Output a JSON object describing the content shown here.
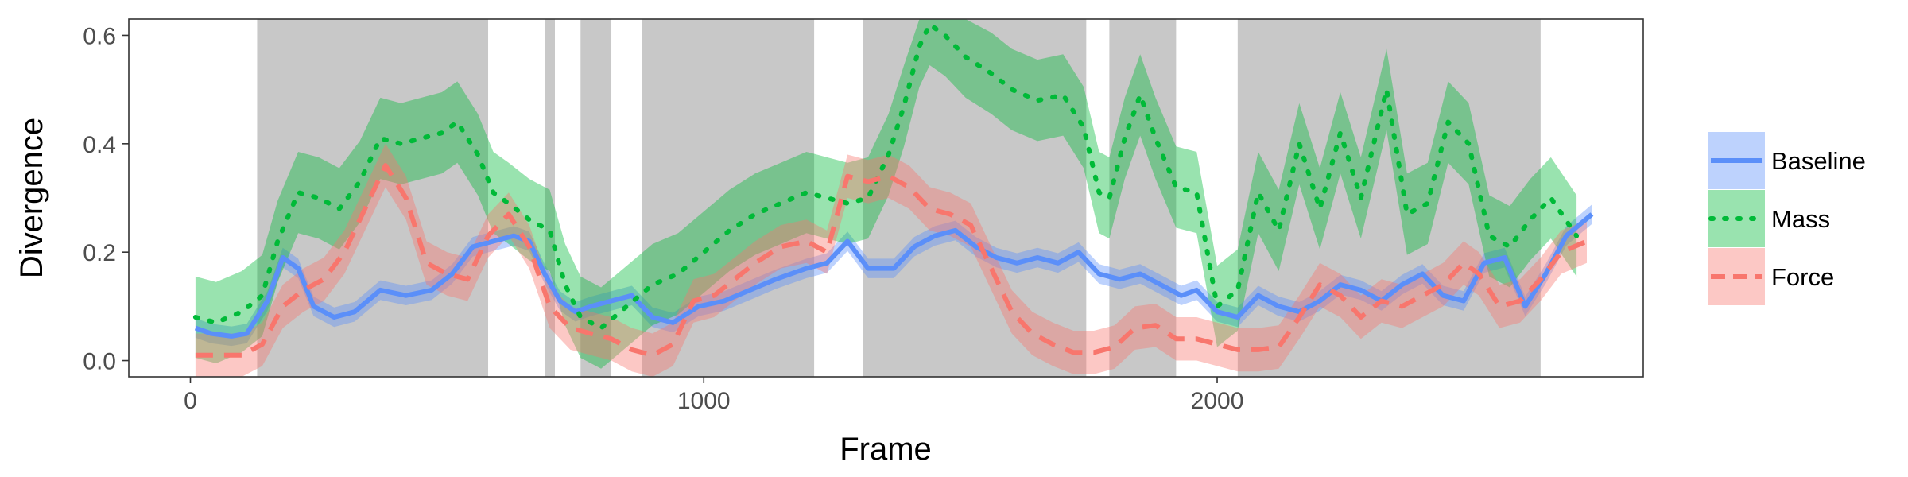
{
  "chart_data": {
    "type": "line",
    "title": "",
    "xlabel": "Frame",
    "ylabel": "Divergence",
    "xlim": [
      -120,
      2830
    ],
    "ylim": [
      -0.03,
      0.63
    ],
    "x_ticks": [
      0,
      1000,
      2000
    ],
    "x_tick_labels": [
      "0",
      "1000",
      "2000"
    ],
    "y_ticks": [
      0.0,
      0.2,
      0.4,
      0.6
    ],
    "y_tick_labels": [
      "0.0",
      "0.2",
      "0.4",
      "0.6"
    ],
    "grid": false,
    "legend_position": "right",
    "shaded_regions": [
      [
        130,
        580
      ],
      [
        690,
        710
      ],
      [
        760,
        820
      ],
      [
        880,
        1215
      ],
      [
        1310,
        1745
      ],
      [
        1790,
        1920
      ],
      [
        2040,
        2630
      ]
    ],
    "shade_color": "#c8c8c8",
    "series": [
      {
        "name": "Baseline",
        "color": "#5b8ff9",
        "dash": "solid",
        "x": [
          10,
          40,
          80,
          110,
          150,
          180,
          210,
          240,
          280,
          320,
          370,
          420,
          470,
          510,
          550,
          590,
          630,
          660,
          690,
          720,
          750,
          780,
          820,
          860,
          900,
          940,
          990,
          1040,
          1090,
          1140,
          1200,
          1240,
          1280,
          1320,
          1370,
          1410,
          1450,
          1490,
          1530,
          1570,
          1610,
          1650,
          1690,
          1730,
          1770,
          1810,
          1850,
          1890,
          1930,
          1960,
          2000,
          2040,
          2080,
          2120,
          2160,
          2200,
          2240,
          2280,
          2320,
          2360,
          2400,
          2440,
          2480,
          2520,
          2560,
          2600,
          2640,
          2680,
          2730
        ],
        "y": [
          0.06,
          0.05,
          0.045,
          0.05,
          0.11,
          0.19,
          0.17,
          0.1,
          0.08,
          0.09,
          0.13,
          0.12,
          0.13,
          0.16,
          0.21,
          0.22,
          0.23,
          0.22,
          0.16,
          0.11,
          0.09,
          0.1,
          0.11,
          0.12,
          0.08,
          0.07,
          0.1,
          0.11,
          0.13,
          0.15,
          0.17,
          0.18,
          0.22,
          0.17,
          0.17,
          0.21,
          0.23,
          0.24,
          0.21,
          0.19,
          0.18,
          0.19,
          0.18,
          0.2,
          0.16,
          0.15,
          0.16,
          0.14,
          0.12,
          0.13,
          0.09,
          0.08,
          0.12,
          0.1,
          0.09,
          0.11,
          0.14,
          0.13,
          0.11,
          0.14,
          0.16,
          0.12,
          0.11,
          0.18,
          0.19,
          0.1,
          0.16,
          0.23,
          0.27
        ],
        "band": 0.018
      },
      {
        "name": "Mass",
        "color": "#00ba38",
        "dash": "dot",
        "x": [
          10,
          50,
          100,
          140,
          170,
          210,
          250,
          290,
          330,
          370,
          410,
          450,
          490,
          520,
          560,
          590,
          620,
          660,
          700,
          730,
          760,
          800,
          850,
          900,
          950,
          1000,
          1050,
          1100,
          1150,
          1200,
          1240,
          1280,
          1320,
          1360,
          1390,
          1420,
          1440,
          1470,
          1510,
          1560,
          1600,
          1650,
          1700,
          1740,
          1770,
          1790,
          1820,
          1850,
          1880,
          1920,
          1960,
          2000,
          2040,
          2080,
          2120,
          2160,
          2200,
          2240,
          2280,
          2330,
          2370,
          2410,
          2450,
          2490,
          2530,
          2570,
          2610,
          2650,
          2700
        ],
        "y": [
          0.08,
          0.07,
          0.09,
          0.12,
          0.22,
          0.31,
          0.3,
          0.28,
          0.33,
          0.41,
          0.4,
          0.41,
          0.42,
          0.44,
          0.38,
          0.31,
          0.29,
          0.26,
          0.24,
          0.14,
          0.08,
          0.06,
          0.1,
          0.14,
          0.16,
          0.2,
          0.24,
          0.27,
          0.29,
          0.31,
          0.3,
          0.29,
          0.3,
          0.38,
          0.47,
          0.58,
          0.62,
          0.6,
          0.56,
          0.53,
          0.5,
          0.48,
          0.49,
          0.43,
          0.31,
          0.3,
          0.41,
          0.49,
          0.41,
          0.32,
          0.31,
          0.1,
          0.13,
          0.31,
          0.24,
          0.4,
          0.28,
          0.42,
          0.3,
          0.5,
          0.27,
          0.29,
          0.44,
          0.4,
          0.23,
          0.21,
          0.26,
          0.3,
          0.23
        ],
        "band": 0.075
      },
      {
        "name": "Force",
        "color": "#f8766d",
        "dash": "dash",
        "x": [
          10,
          50,
          100,
          140,
          180,
          220,
          260,
          300,
          340,
          380,
          420,
          460,
          500,
          540,
          580,
          620,
          660,
          700,
          740,
          780,
          820,
          860,
          900,
          940,
          980,
          1020,
          1060,
          1100,
          1150,
          1200,
          1240,
          1280,
          1320,
          1360,
          1400,
          1440,
          1480,
          1520,
          1560,
          1600,
          1640,
          1680,
          1720,
          1760,
          1800,
          1840,
          1880,
          1920,
          1960,
          2000,
          2040,
          2080,
          2120,
          2160,
          2200,
          2240,
          2280,
          2320,
          2360,
          2400,
          2440,
          2480,
          2510,
          2550,
          2590,
          2630,
          2670,
          2720
        ],
        "y": [
          0.01,
          0.01,
          0.01,
          0.03,
          0.1,
          0.13,
          0.15,
          0.2,
          0.28,
          0.36,
          0.3,
          0.18,
          0.16,
          0.15,
          0.23,
          0.27,
          0.21,
          0.1,
          0.06,
          0.05,
          0.04,
          0.02,
          0.01,
          0.03,
          0.11,
          0.12,
          0.15,
          0.18,
          0.21,
          0.22,
          0.2,
          0.34,
          0.33,
          0.34,
          0.32,
          0.28,
          0.27,
          0.25,
          0.17,
          0.09,
          0.05,
          0.03,
          0.015,
          0.015,
          0.025,
          0.06,
          0.065,
          0.04,
          0.04,
          0.03,
          0.02,
          0.02,
          0.025,
          0.08,
          0.14,
          0.12,
          0.08,
          0.11,
          0.1,
          0.12,
          0.14,
          0.18,
          0.16,
          0.1,
          0.11,
          0.15,
          0.2,
          0.22
        ],
        "band": 0.04
      }
    ]
  }
}
